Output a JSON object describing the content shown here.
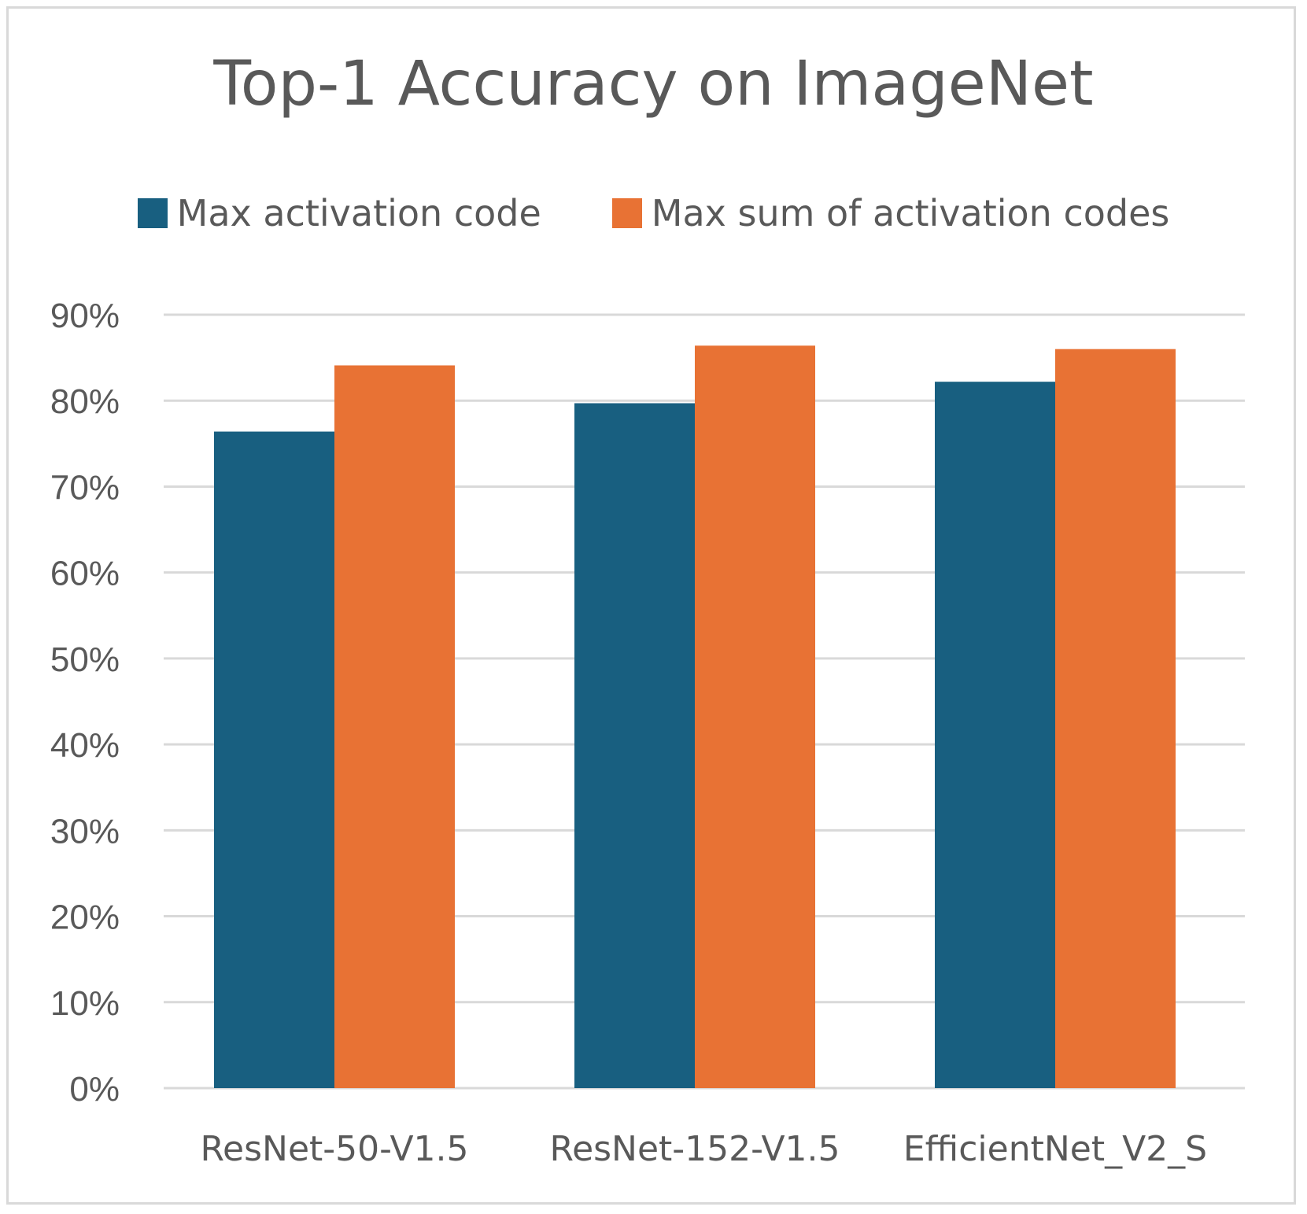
{
  "chart_data": {
    "type": "bar",
    "title": "Top-1 Accuracy on ImageNet",
    "xlabel": "",
    "ylabel": "",
    "categories": [
      "ResNet-50-V1.5",
      "ResNet-152-V1.5",
      "EfficientNet_V2_S"
    ],
    "series": [
      {
        "name": "Max activation code",
        "color": "#185f80",
        "values": [
          76.4,
          79.7,
          82.2
        ]
      },
      {
        "name": "Max sum of activation codes",
        "color": "#e87234",
        "values": [
          84.1,
          86.4,
          86.0
        ]
      }
    ],
    "ylim": [
      0,
      90
    ],
    "yticks": [
      0,
      10,
      20,
      30,
      40,
      50,
      60,
      70,
      80,
      90
    ],
    "ytick_labels": [
      "0%",
      "10%",
      "20%",
      "30%",
      "40%",
      "50%",
      "60%",
      "70%",
      "80%",
      "90%"
    ],
    "grid": true,
    "grid_color": "#d9d9d9",
    "legend_position": "top-center"
  }
}
